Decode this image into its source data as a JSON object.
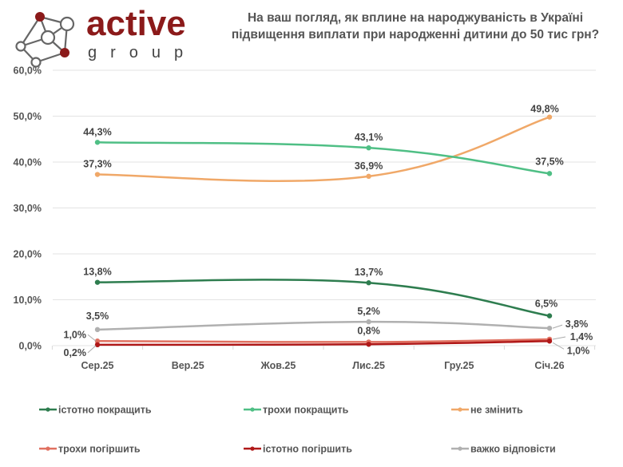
{
  "brand": {
    "name": "active",
    "subname": "group",
    "color": "#8b1a1a"
  },
  "chart_data": {
    "type": "line",
    "title": "На ваш погляд, як вплине на народжуваність в Україні підвищення виплати при народженні дитини до 50 тис грн?",
    "title_lines": [
      "На ваш погляд, як вплине на народжуваність в Україні",
      "підвищення виплати при народженні дитини до 50 тис грн?"
    ],
    "xlabel": "",
    "ylabel": "",
    "categories": [
      "Сер.25",
      "Вер.25",
      "Жов.25",
      "Лис.25",
      "Гру.25",
      "Січ.26"
    ],
    "ylim": [
      0,
      60
    ],
    "yticks": [
      0,
      10,
      20,
      30,
      40,
      50,
      60
    ],
    "ytick_labels": [
      "0,0%",
      "10,0%",
      "20,0%",
      "30,0%",
      "40,0%",
      "50,0%",
      "60,0%"
    ],
    "grid": true,
    "legend_position": "bottom",
    "smooth": true,
    "series": [
      {
        "name": "істотно покращить",
        "color": "#2e7d4f",
        "points": [
          {
            "x": "Сер.25",
            "y": 13.8,
            "label": "13,8%"
          },
          {
            "x": "Лис.25",
            "y": 13.7,
            "label": "13,7%"
          },
          {
            "x": "Січ.26",
            "y": 6.5,
            "label": "6,5%"
          }
        ]
      },
      {
        "name": "трохи покращить",
        "color": "#4fbf85",
        "points": [
          {
            "x": "Сер.25",
            "y": 44.3,
            "label": "44,3%"
          },
          {
            "x": "Лис.25",
            "y": 43.1,
            "label": "43,1%"
          },
          {
            "x": "Січ.26",
            "y": 37.5,
            "label": "37,5%"
          }
        ]
      },
      {
        "name": "не змінить",
        "color": "#f0a868",
        "points": [
          {
            "x": "Сер.25",
            "y": 37.3,
            "label": "37,3%"
          },
          {
            "x": "Лис.25",
            "y": 36.9,
            "label": "36,9%"
          },
          {
            "x": "Січ.26",
            "y": 49.8,
            "label": "49,8%"
          }
        ]
      },
      {
        "name": "трохи погіршить",
        "color": "#e07060",
        "points": [
          {
            "x": "Сер.25",
            "y": 1.0,
            "label": "1,0%"
          },
          {
            "x": "Лис.25",
            "y": 0.8,
            "label": "0,8%"
          },
          {
            "x": "Січ.26",
            "y": 1.4,
            "label": "1,4%"
          }
        ]
      },
      {
        "name": "істотно погіршить",
        "color": "#b01818",
        "points": [
          {
            "x": "Сер.25",
            "y": 0.2,
            "label": "0,2%"
          },
          {
            "x": "Лис.25",
            "y": 0.3,
            "label": ""
          },
          {
            "x": "Січ.26",
            "y": 1.0,
            "label": "1,0%"
          }
        ]
      },
      {
        "name": "важко відповісти",
        "color": "#b0b0b0",
        "points": [
          {
            "x": "Сер.25",
            "y": 3.5,
            "label": "3,5%"
          },
          {
            "x": "Лис.25",
            "y": 5.2,
            "label": "5,2%"
          },
          {
            "x": "Січ.26",
            "y": 3.8,
            "label": "3,8%"
          }
        ]
      }
    ]
  }
}
